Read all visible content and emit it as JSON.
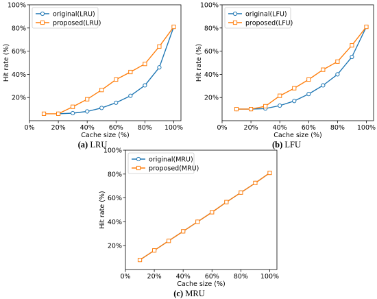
{
  "chart_data": [
    {
      "type": "line",
      "caption_letter": "(a)",
      "caption_text": " LRU",
      "xlabel": "Cache size (%)",
      "ylabel": "Hit rate (%)",
      "xlim": [
        0,
        105
      ],
      "ylim": [
        0,
        100
      ],
      "x_ticks": [
        0,
        20,
        40,
        60,
        80,
        100
      ],
      "x_tick_labels": [
        "0%",
        "20%",
        "40%",
        "60%",
        "80%",
        "100%"
      ],
      "y_ticks": [
        20,
        40,
        60,
        80,
        100
      ],
      "y_tick_labels": [
        "20%",
        "40%",
        "60%",
        "80%",
        "100%"
      ],
      "legend_position": "top-left",
      "series": [
        {
          "name": "original(LRU)",
          "color": "#1f77b4",
          "marker": "circle",
          "x": [
            20,
            30,
            40,
            50,
            60,
            70,
            80,
            90,
            100
          ],
          "y": [
            6,
            6.5,
            8,
            11,
            15.5,
            21.5,
            30.5,
            46,
            81
          ]
        },
        {
          "name": "proposed(LRU)",
          "color": "#ff7f0e",
          "marker": "square",
          "x": [
            10,
            20,
            30,
            40,
            50,
            60,
            70,
            80,
            90,
            100
          ],
          "y": [
            6,
            6,
            12,
            18.5,
            26.5,
            35.5,
            42,
            49,
            64,
            81
          ]
        }
      ]
    },
    {
      "type": "line",
      "caption_letter": "(b)",
      "caption_text": " LFU",
      "xlabel": "Cache size (%)",
      "ylabel": "Hit rate (%)",
      "xlim": [
        0,
        105
      ],
      "ylim": [
        0,
        100
      ],
      "x_ticks": [
        0,
        20,
        40,
        60,
        80,
        100
      ],
      "x_tick_labels": [
        "0%",
        "20%",
        "40%",
        "60%",
        "80%",
        "100%"
      ],
      "y_ticks": [
        20,
        40,
        60,
        80,
        100
      ],
      "y_tick_labels": [
        "20%",
        "40%",
        "60%",
        "80%",
        "100%"
      ],
      "legend_position": "top-left",
      "series": [
        {
          "name": "original(LFU)",
          "color": "#1f77b4",
          "marker": "circle",
          "x": [
            10,
            20,
            30,
            40,
            50,
            60,
            70,
            80,
            90,
            100
          ],
          "y": [
            10,
            10,
            10.5,
            13,
            17,
            23,
            30.5,
            40,
            55,
            81
          ]
        },
        {
          "name": "proposed(LFU)",
          "color": "#ff7f0e",
          "marker": "square",
          "x": [
            10,
            20,
            30,
            40,
            50,
            60,
            70,
            80,
            90,
            100
          ],
          "y": [
            10,
            10,
            12.5,
            21.5,
            28,
            35.5,
            44,
            51,
            65,
            81
          ]
        }
      ]
    },
    {
      "type": "line",
      "caption_letter": "(c)",
      "caption_text": " MRU",
      "xlabel": "Cache size (%)",
      "ylabel": "Hit rate (%)",
      "xlim": [
        0,
        105
      ],
      "ylim": [
        0,
        100
      ],
      "x_ticks": [
        0,
        20,
        40,
        60,
        80,
        100
      ],
      "x_tick_labels": [
        "0%",
        "20%",
        "40%",
        "60%",
        "80%",
        "100%"
      ],
      "y_ticks": [
        20,
        40,
        60,
        80,
        100
      ],
      "y_tick_labels": [
        "20%",
        "40%",
        "60%",
        "80%",
        "100%"
      ],
      "legend_position": "top-left",
      "series": [
        {
          "name": "original(MRU)",
          "color": "#1f77b4",
          "marker": "circle",
          "x": [
            10,
            20,
            30,
            40,
            50,
            60,
            70,
            80,
            90,
            100
          ],
          "y": [
            8,
            16,
            24,
            32,
            40,
            48,
            56.5,
            64.5,
            72.5,
            81
          ]
        },
        {
          "name": "proposed(MRU)",
          "color": "#ff7f0e",
          "marker": "square",
          "x": [
            10,
            20,
            30,
            40,
            50,
            60,
            70,
            80,
            90,
            100
          ],
          "y": [
            8,
            16,
            24,
            32,
            40,
            48,
            56.5,
            64.5,
            72.5,
            81
          ]
        }
      ]
    }
  ]
}
